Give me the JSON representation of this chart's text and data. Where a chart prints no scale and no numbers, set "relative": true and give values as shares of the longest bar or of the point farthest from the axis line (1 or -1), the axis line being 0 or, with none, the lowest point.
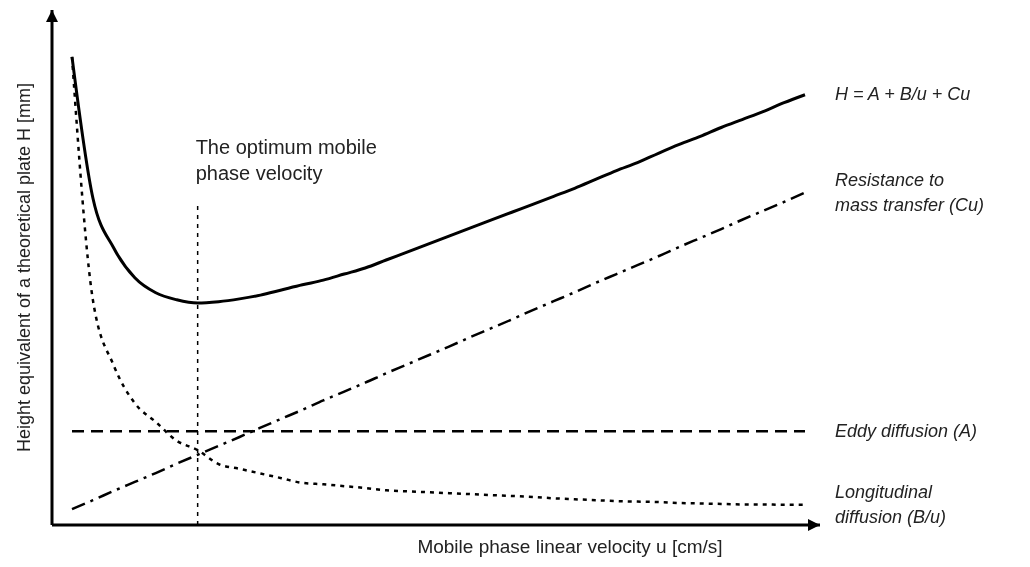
{
  "chart_data": {
    "type": "line",
    "relative": true,
    "xlabel": "Mobile phase linear velocity u [cm/s]",
    "ylabel": "Height equivalent of a theoretical plate H [mm]",
    "categories": [
      null,
      null,
      null,
      null,
      null,
      null,
      null,
      null,
      null,
      null,
      null,
      null,
      null,
      null,
      null,
      null,
      null,
      null,
      null,
      null,
      null,
      null,
      null,
      null,
      null,
      null,
      null,
      null,
      null,
      null,
      null,
      null,
      null,
      null,
      null,
      null
    ],
    "series": [
      {
        "name": "H = A + B/u + Cu",
        "color": "#000000",
        "line_style": "solid",
        "values": [
          1,
          0.698,
          0.591,
          0.528,
          0.496,
          0.481,
          0.474,
          0.477,
          0.483,
          0.491,
          0.502,
          0.513,
          0.523,
          0.536,
          0.549,
          0.566,
          0.583,
          0.6,
          0.617,
          0.634,
          0.651,
          0.668,
          0.685,
          0.702,
          0.719,
          0.738,
          0.757,
          0.774,
          0.794,
          0.813,
          0.83,
          0.849,
          0.866,
          0.883,
          0.902,
          0.919
        ]
      },
      {
        "name": "Resistance to mass transfer (Cu)",
        "color": "#000000",
        "line_style": "dashdot",
        "values": [
          0.034,
          0.053,
          0.073,
          0.092,
          0.111,
          0.131,
          0.15,
          0.169,
          0.188,
          0.208,
          0.227,
          0.246,
          0.266,
          0.285,
          0.304,
          0.324,
          0.343,
          0.362,
          0.381,
          0.401,
          0.42,
          0.439,
          0.459,
          0.478,
          0.497,
          0.517,
          0.536,
          0.555,
          0.574,
          0.594,
          0.613,
          0.632,
          0.652,
          0.671,
          0.69,
          0.71
        ]
      },
      {
        "name": "Eddy diffusion (A)",
        "color": "#000000",
        "line_style": "dashed",
        "values": [
          0.2,
          0.2,
          0.2,
          0.2,
          0.2,
          0.2,
          0.2,
          0.2,
          0.2,
          0.2,
          0.2,
          0.2,
          0.2,
          0.2,
          0.2,
          0.2,
          0.2,
          0.2,
          0.2,
          0.2,
          0.2,
          0.2,
          0.2,
          0.2,
          0.2,
          0.2,
          0.2,
          0.2,
          0.2,
          0.2,
          0.2,
          0.2,
          0.2,
          0.2,
          0.2,
          0.2
        ]
      },
      {
        "name": "Longitudinal diffusion (B/u)",
        "color": "#000000",
        "line_style": "dotted",
        "values": [
          1,
          0.48,
          0.34,
          0.26,
          0.22,
          0.18,
          0.16,
          0.13,
          0.12,
          0.11,
          0.1,
          0.09,
          0.087,
          0.083,
          0.079,
          0.074,
          0.072,
          0.07,
          0.068,
          0.066,
          0.064,
          0.062,
          0.06,
          0.057,
          0.055,
          0.053,
          0.051,
          0.05,
          0.049,
          0.047,
          0.046,
          0.045,
          0.044,
          0.044,
          0.043,
          0.043
        ]
      }
    ],
    "ref_lines": [
      {
        "axis": "x",
        "label": "The optimum mobile phase velocity",
        "line_style": "dotted",
        "color": "#000000"
      }
    ]
  }
}
